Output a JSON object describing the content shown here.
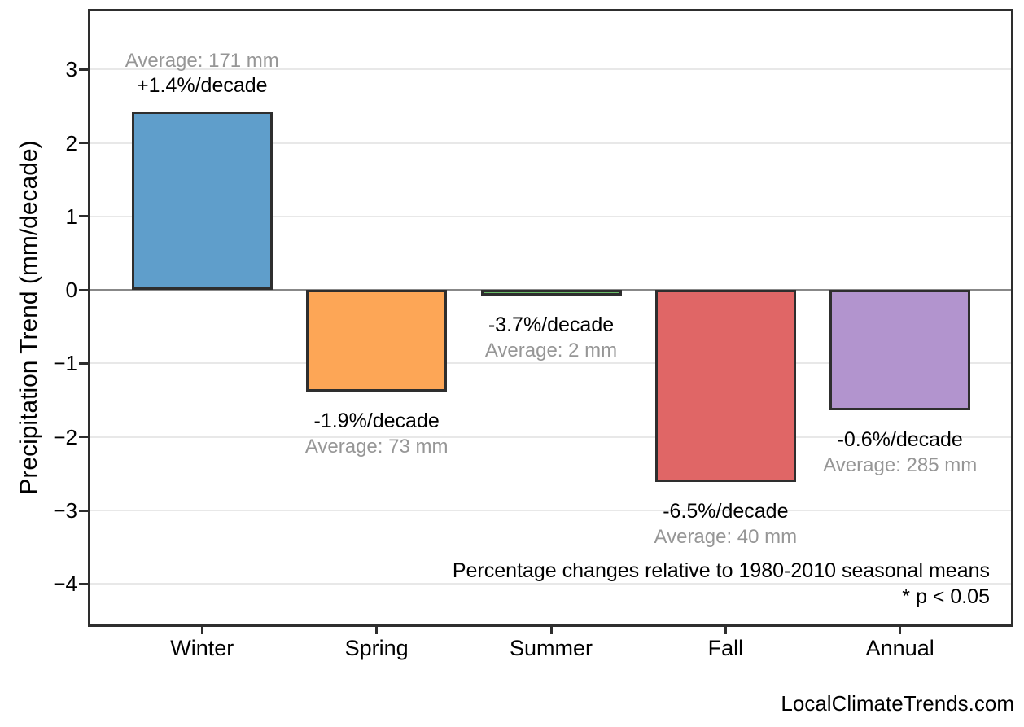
{
  "chart_data": {
    "type": "bar",
    "title": "",
    "xlabel": "",
    "ylabel": "Precipitation Trend (mm/decade)",
    "categories": [
      "Winter",
      "Spring",
      "Summer",
      "Fall",
      "Annual"
    ],
    "values": [
      2.43,
      -1.38,
      -0.08,
      -2.61,
      -1.64
    ],
    "bar_colors": [
      "#5F9ECB",
      "#FDA656",
      "#6ABF69",
      "#E06666",
      "#B294CE"
    ],
    "bar_edge_color": "#2E2E2E",
    "averages_mm": [
      171,
      73,
      2,
      40,
      285
    ],
    "percent_per_decade": [
      1.4,
      -1.9,
      -3.7,
      -6.5,
      -0.6
    ],
    "annotations": [
      {
        "percent": "+1.4%/decade",
        "average": "Average: 171 mm",
        "side": "above"
      },
      {
        "percent": "-1.9%/decade",
        "average": "Average: 73 mm",
        "side": "below"
      },
      {
        "percent": "-3.7%/decade",
        "average": "Average: 2 mm",
        "side": "below"
      },
      {
        "percent": "-6.5%/decade",
        "average": "Average: 40 mm",
        "side": "below"
      },
      {
        "percent": "-0.6%/decade",
        "average": "Average: 285 mm",
        "side": "below"
      }
    ],
    "yticks": [
      3,
      2,
      1,
      0,
      -1,
      -2,
      -3,
      -4
    ],
    "ytick_labels": [
      "3",
      "2",
      "1",
      "0",
      "−1",
      "−2",
      "−3",
      "−4"
    ],
    "ylim": [
      -4.55,
      3.79
    ],
    "grid": "horizontal",
    "legend": "none",
    "note_line1": "Percentage changes relative to 1980-2010 seasonal means",
    "note_line2": "* p < 0.05",
    "watermark": "LocalClimateTrends.com",
    "grid_color": "#E8E8E8",
    "zero_line_color": "#888888",
    "gray_text_color": "#969696"
  }
}
